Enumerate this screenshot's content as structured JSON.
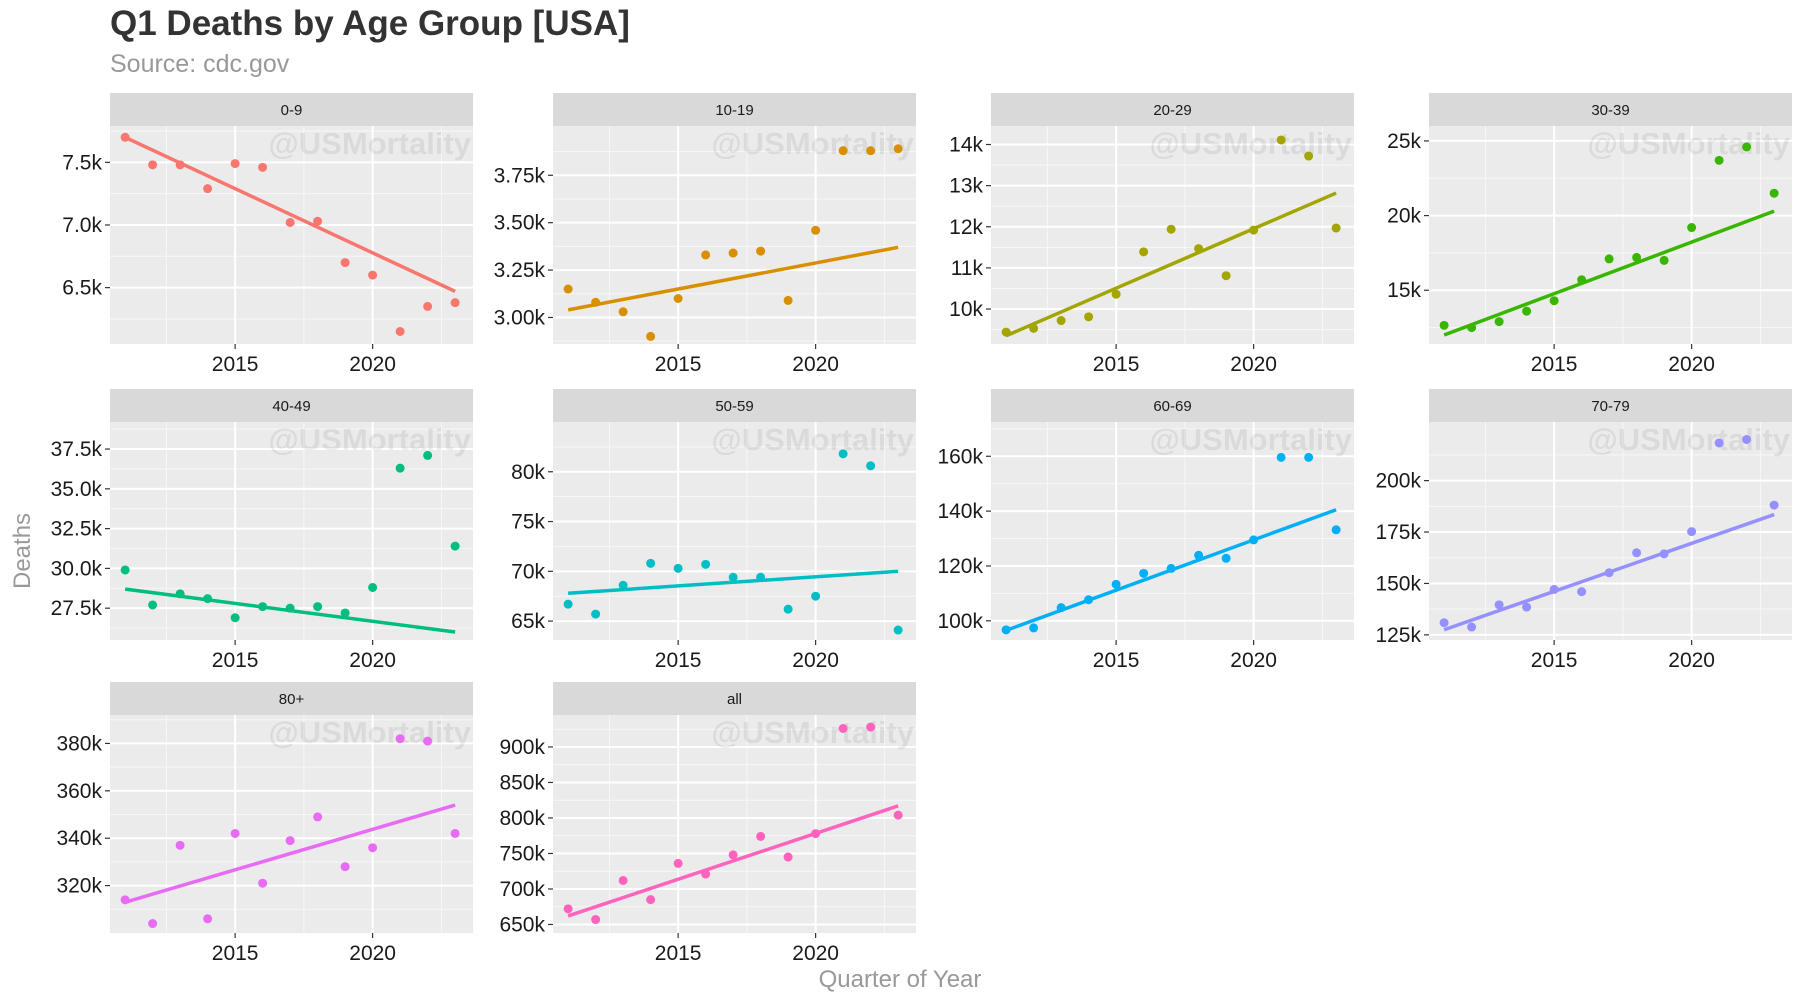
{
  "chart_data": {
    "type": "scatter",
    "title": "Q1 Deaths by Age Group [USA]",
    "subtitle": "Source: cdc.gov",
    "xlabel": "Quarter of Year",
    "ylabel": "Deaths",
    "watermark": "@USMortality",
    "x": [
      2011,
      2012,
      2013,
      2014,
      2015,
      2016,
      2017,
      2018,
      2019,
      2020,
      2021,
      2022,
      2023
    ],
    "xlim": [
      2010.45,
      2023.65
    ],
    "xticks": [
      2015,
      2020
    ],
    "xtick_labels": [
      "2015",
      "2020"
    ],
    "grid": true,
    "panels": [
      {
        "name": "0-9",
        "color": "#F8766D",
        "values": [
          7700,
          7480,
          7480,
          7290,
          7490,
          7460,
          7020,
          7030,
          6700,
          6600,
          6150,
          6350,
          6380
        ],
        "trend": [
          7700,
          6470
        ],
        "ylim": [
          6050,
          7790
        ],
        "yticks": [
          6500,
          7000,
          7500
        ],
        "ytick_labels": [
          "6.5k",
          "7.0k",
          "7.5k"
        ]
      },
      {
        "name": "10-19",
        "color": "#D89000",
        "values": [
          3150,
          3080,
          3030,
          2900,
          3100,
          3330,
          3340,
          3350,
          3090,
          3460,
          3880,
          3880,
          3890
        ],
        "trend": [
          3040,
          3370
        ],
        "ylim": [
          2860,
          4010
        ],
        "yticks": [
          3000,
          3250,
          3500,
          3750
        ],
        "ytick_labels": [
          "3.00k",
          "3.25k",
          "3.50k",
          "3.75k"
        ]
      },
      {
        "name": "20-29",
        "color": "#A3A500",
        "values": [
          9440,
          9530,
          9720,
          9810,
          10360,
          11390,
          11940,
          11470,
          10810,
          11920,
          14110,
          13720,
          11970
        ],
        "trend": [
          9350,
          12820
        ],
        "ylim": [
          9150,
          14450
        ],
        "yticks": [
          10000,
          11000,
          12000,
          13000,
          14000
        ],
        "ytick_labels": [
          "10k",
          "11k",
          "12k",
          "13k",
          "14k"
        ]
      },
      {
        "name": "30-39",
        "color": "#39B600",
        "values": [
          12650,
          12500,
          12900,
          13600,
          14300,
          15700,
          17100,
          17200,
          17000,
          19200,
          23700,
          24600,
          21500
        ],
        "trend": [
          12000,
          20300
        ],
        "ylim": [
          11400,
          26000
        ],
        "yticks": [
          15000,
          20000,
          25000
        ],
        "ytick_labels": [
          "15k",
          "20k",
          "25k"
        ]
      },
      {
        "name": "40-49",
        "color": "#00BF7D",
        "values": [
          29900,
          27700,
          28400,
          28100,
          26900,
          27600,
          27500,
          27600,
          27200,
          28800,
          36300,
          37100,
          31400
        ],
        "trend": [
          28700,
          26000
        ],
        "ylim": [
          25500,
          39200
        ],
        "yticks": [
          27500,
          30000,
          32500,
          35000,
          37500
        ],
        "ytick_labels": [
          "27.5k",
          "30.0k",
          "32.5k",
          "35.0k",
          "37.5k"
        ]
      },
      {
        "name": "50-59",
        "color": "#00BFC4",
        "values": [
          66700,
          65700,
          68600,
          70800,
          70300,
          70700,
          69400,
          69400,
          66200,
          67500,
          81800,
          80600,
          64100
        ],
        "trend": [
          67800,
          70000
        ],
        "ylim": [
          63100,
          85000
        ],
        "yticks": [
          65000,
          70000,
          75000,
          80000
        ],
        "ytick_labels": [
          "65k",
          "70k",
          "75k",
          "80k"
        ]
      },
      {
        "name": "60-69",
        "color": "#00B0F6",
        "values": [
          96700,
          97400,
          104800,
          107700,
          113300,
          117300,
          119100,
          123900,
          122800,
          129500,
          159600,
          159600,
          133200
        ],
        "trend": [
          96500,
          140500
        ],
        "ylim": [
          93000,
          172500
        ],
        "yticks": [
          100000,
          120000,
          140000,
          160000
        ],
        "ytick_labels": [
          "100k",
          "120k",
          "140k",
          "160k"
        ]
      },
      {
        "name": "70-79",
        "color": "#9590FF",
        "values": [
          130900,
          128800,
          139600,
          138500,
          147100,
          146000,
          155200,
          164900,
          164400,
          175200,
          218300,
          220000,
          188100
        ],
        "trend": [
          127500,
          183500
        ],
        "ylim": [
          122500,
          228500
        ],
        "yticks": [
          125000,
          150000,
          175000,
          200000
        ],
        "ytick_labels": [
          "125k",
          "150k",
          "175k",
          "200k"
        ]
      },
      {
        "name": "80+",
        "color": "#E76BF3",
        "values": [
          314000,
          304000,
          337000,
          306000,
          342000,
          321000,
          339000,
          349000,
          328000,
          336000,
          382000,
          381000,
          342000
        ],
        "trend": [
          313000,
          354000
        ],
        "ylim": [
          300000,
          392000
        ],
        "yticks": [
          320000,
          340000,
          360000,
          380000
        ],
        "ytick_labels": [
          "320k",
          "340k",
          "360k",
          "380k"
        ]
      },
      {
        "name": "all",
        "color": "#FF62BC",
        "values": [
          672000,
          657000,
          712000,
          685000,
          736000,
          721000,
          748000,
          774000,
          745000,
          778000,
          926000,
          928000,
          804000
        ],
        "trend": [
          662000,
          817000
        ],
        "ylim": [
          638000,
          945000
        ],
        "yticks": [
          650000,
          700000,
          750000,
          800000,
          850000,
          900000
        ],
        "ytick_labels": [
          "650k",
          "700k",
          "750k",
          "800k",
          "850k",
          "900k"
        ]
      }
    ]
  }
}
